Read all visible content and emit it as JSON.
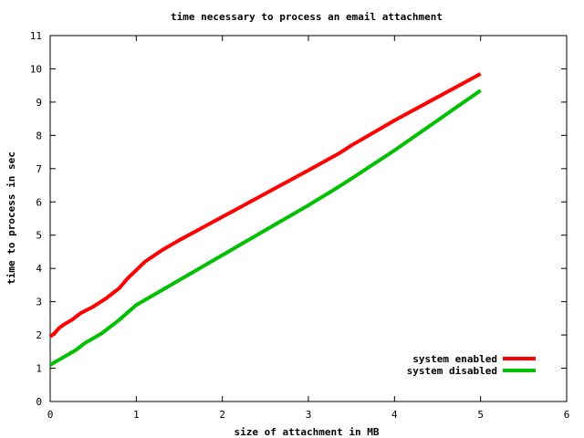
{
  "chart_data": {
    "type": "line",
    "title": "time necessary to process an email attachment",
    "xlabel": "size of attachment in MB",
    "ylabel": "time to process in sec",
    "xlim": [
      0,
      6
    ],
    "ylim": [
      0,
      11
    ],
    "x_ticks": [
      "0",
      "1",
      "2",
      "3",
      "4",
      "5",
      "6"
    ],
    "y_ticks": [
      "0",
      "1",
      "2",
      "3",
      "4",
      "5",
      "6",
      "7",
      "8",
      "9",
      "10",
      "11"
    ],
    "grid": false,
    "legend_position": "bottom-right",
    "series": [
      {
        "name": "system enabled",
        "color": "#ff0000",
        "points": [
          [
            0.0,
            1.95
          ],
          [
            0.05,
            2.05
          ],
          [
            0.1,
            2.2
          ],
          [
            0.15,
            2.3
          ],
          [
            0.25,
            2.45
          ],
          [
            0.35,
            2.65
          ],
          [
            0.5,
            2.85
          ],
          [
            0.65,
            3.1
          ],
          [
            0.8,
            3.4
          ],
          [
            0.9,
            3.7
          ],
          [
            1.1,
            4.2
          ],
          [
            1.3,
            4.55
          ],
          [
            1.5,
            4.85
          ],
          [
            2.0,
            5.55
          ],
          [
            2.5,
            6.25
          ],
          [
            3.0,
            6.95
          ],
          [
            3.35,
            7.45
          ],
          [
            3.5,
            7.7
          ],
          [
            4.0,
            8.45
          ],
          [
            4.5,
            9.15
          ],
          [
            5.0,
            9.85
          ]
        ]
      },
      {
        "name": "system disabled",
        "color": "#00c000",
        "points": [
          [
            0.0,
            1.1
          ],
          [
            0.1,
            1.25
          ],
          [
            0.2,
            1.4
          ],
          [
            0.3,
            1.55
          ],
          [
            0.4,
            1.75
          ],
          [
            0.6,
            2.05
          ],
          [
            0.8,
            2.45
          ],
          [
            1.0,
            2.9
          ],
          [
            1.3,
            3.35
          ],
          [
            1.5,
            3.65
          ],
          [
            2.0,
            4.4
          ],
          [
            2.5,
            5.15
          ],
          [
            3.0,
            5.9
          ],
          [
            3.35,
            6.45
          ],
          [
            3.5,
            6.7
          ],
          [
            4.0,
            7.55
          ],
          [
            4.5,
            8.45
          ],
          [
            5.0,
            9.35
          ]
        ]
      }
    ]
  }
}
